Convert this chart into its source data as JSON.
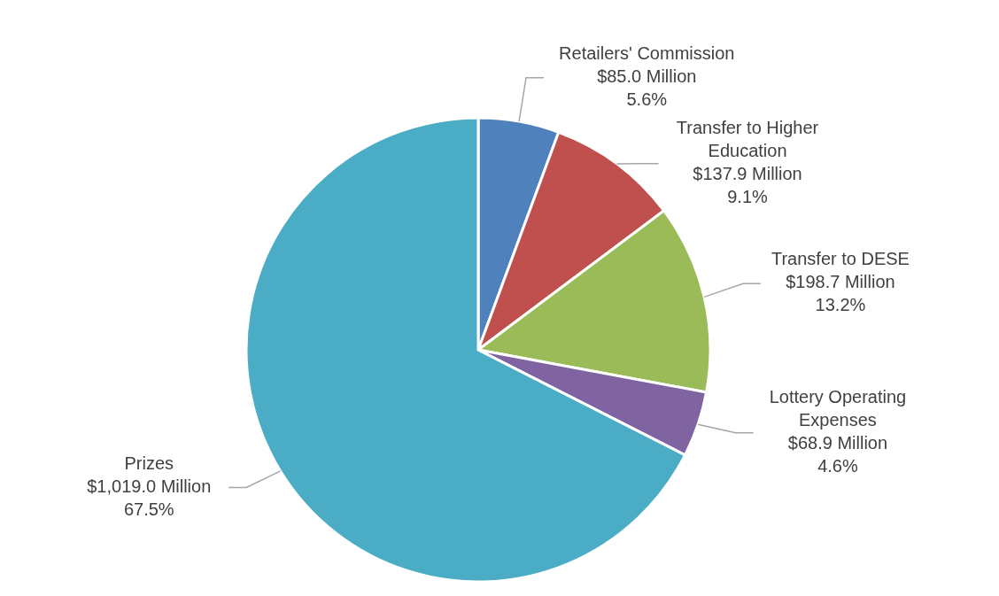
{
  "chart_data": {
    "type": "pie",
    "categories": [
      "Retailers' Commission",
      "Transfer to Higher Education",
      "Transfer to DESE",
      "Lottery Operating Expenses",
      "Prizes"
    ],
    "values": [
      85.0,
      137.9,
      198.7,
      68.9,
      1019.0
    ],
    "value_labels": [
      "$85.0 Million\n5.6%",
      "$137.9 Million\n9.1%",
      "$198.7 Million\n13.2%",
      "$68.9 Million\n4.6%",
      "$1,019.0 Million\n67.5%"
    ],
    "colors": [
      "#4f81bd",
      "#c0504d",
      "#9bbb59",
      "#8064a2",
      "#4bacc6"
    ]
  }
}
